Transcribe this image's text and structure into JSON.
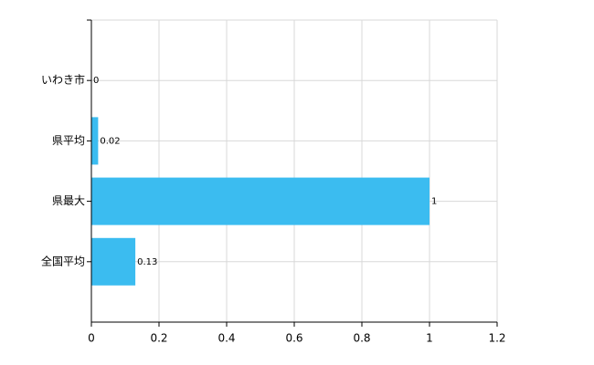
{
  "chart_data": {
    "type": "bar",
    "orientation": "horizontal",
    "categories": [
      "いわき市",
      "県平均",
      "県最大",
      "全国平均"
    ],
    "values": [
      0,
      0.02,
      1,
      0.13
    ],
    "color": "#3bbcf0",
    "xlim": [
      0,
      1.2
    ],
    "xticks": [
      0,
      0.2,
      0.4,
      0.6,
      0.8,
      1,
      1.2
    ],
    "grid": true
  }
}
